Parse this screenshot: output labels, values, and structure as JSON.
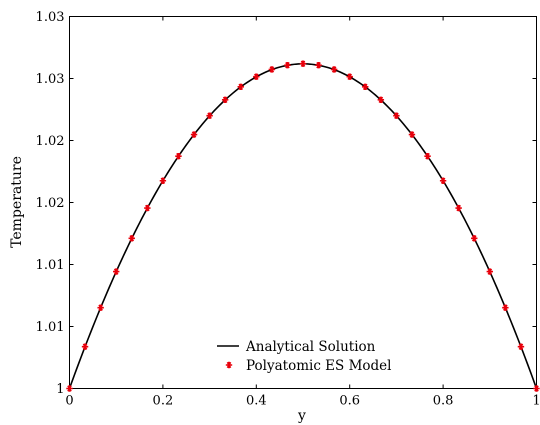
{
  "chart_data": {
    "type": "line",
    "title": "",
    "xlabel": "y",
    "ylabel": "Temperature",
    "xlim": [
      0,
      1
    ],
    "ylim": [
      1.0,
      1.033
    ],
    "grid": false,
    "legend_position": "bottom-center",
    "x_ticks": [
      0,
      0.2,
      0.4,
      0.6,
      0.8,
      1
    ],
    "x_tick_labels": [
      "0",
      "0.2",
      "0.4",
      "0.6",
      "0.8",
      "1"
    ],
    "y_ticks": [
      1.0,
      1.0055,
      1.011,
      1.0165,
      1.022,
      1.0275,
      1.033
    ],
    "y_tick_labels": [
      "1",
      "1.01",
      "1.01",
      "1.02",
      "1.02",
      "1.03",
      "1.03"
    ],
    "series": [
      {
        "name": "Analytical Solution",
        "kind": "line",
        "color": "#000000",
        "peak": 1.0288,
        "shape": "parabola"
      },
      {
        "name": "Polyatomic ES Model",
        "kind": "scatter",
        "color": "#e8000b",
        "marker": "star",
        "x": [
          0,
          0.0333,
          0.0667,
          0.1,
          0.1333,
          0.1667,
          0.2,
          0.2333,
          0.2667,
          0.3,
          0.3333,
          0.3667,
          0.4,
          0.4333,
          0.4667,
          0.5,
          0.5333,
          0.5667,
          0.6,
          0.6333,
          0.6667,
          0.7,
          0.7333,
          0.7667,
          0.8,
          0.8333,
          0.8667,
          0.9,
          0.9333,
          0.9667,
          1
        ],
        "y": [
          1.0,
          1.00371,
          1.00717,
          1.01037,
          1.01332,
          1.01601,
          1.01843,
          1.02061,
          1.02253,
          1.0242,
          1.02561,
          1.02676,
          1.02766,
          1.0283,
          1.02868,
          1.02881,
          1.02868,
          1.0283,
          1.02766,
          1.02676,
          1.02561,
          1.0242,
          1.02253,
          1.02061,
          1.01843,
          1.01601,
          1.01332,
          1.01037,
          1.00717,
          1.00371,
          1.0
        ]
      }
    ]
  }
}
